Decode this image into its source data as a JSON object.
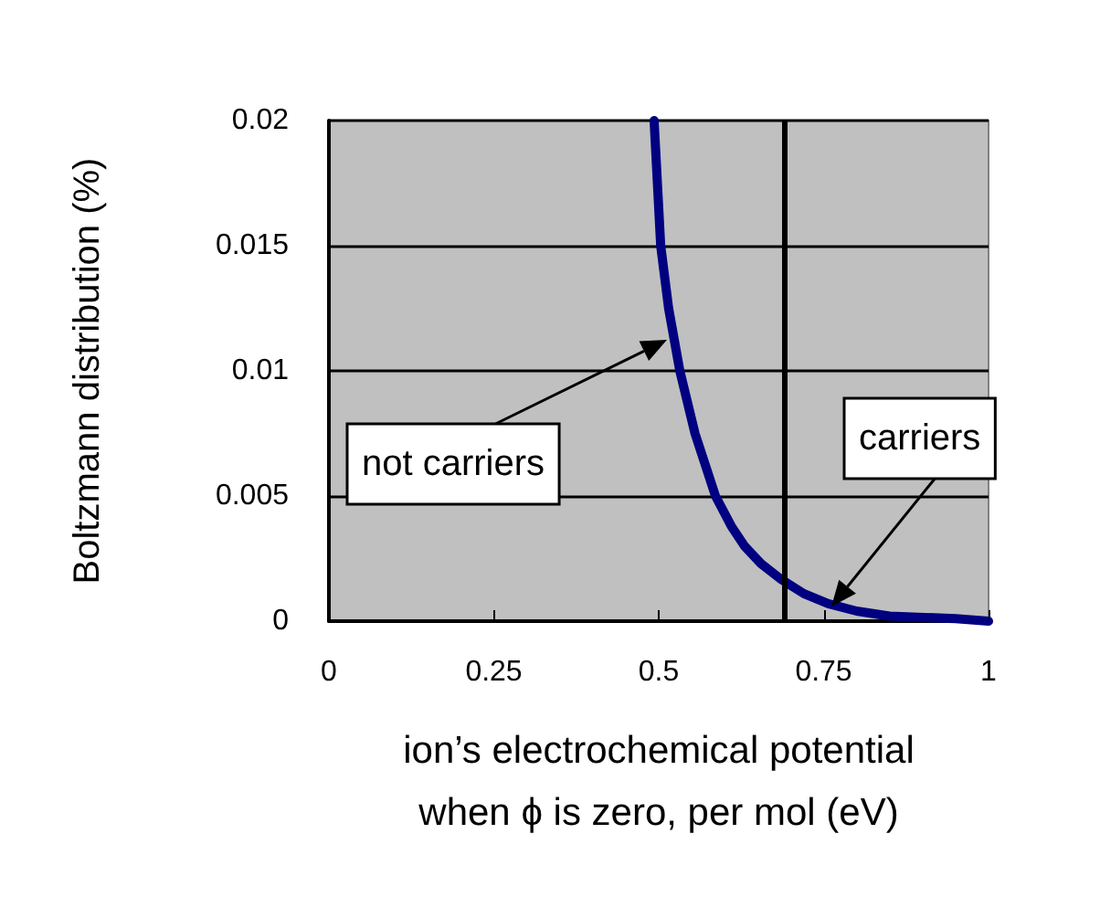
{
  "chart_data": {
    "type": "line",
    "ylabel": "Boltzmann distribution (%)",
    "xlabel": "ion’s electrochemical potential\nwhen ϕ is zero, per mol (eV)",
    "x": [
      0.493,
      0.503,
      0.515,
      0.532,
      0.555,
      0.586,
      0.61,
      0.63,
      0.655,
      0.684,
      0.72,
      0.757,
      0.8,
      0.85,
      0.95,
      1
    ],
    "series": [
      {
        "color": "#000080",
        "values": [
          0.02,
          0.015,
          0.0125,
          0.01,
          0.0075,
          0.005,
          0.0038,
          0.003,
          0.0023,
          0.0017,
          0.0011,
          0.0007,
          0.0004,
          0.0002,
          0.0001,
          0
        ]
      }
    ],
    "xlim": [
      0,
      1
    ],
    "xticks": [
      0,
      0.25,
      0.5,
      0.75,
      1
    ],
    "ylim": [
      0,
      0.02
    ],
    "yticks": [
      0,
      0.005,
      0.01,
      0.015,
      0.02
    ],
    "grid": "y",
    "marker": "none",
    "line_style": "solid",
    "ref_lines": [
      {
        "axis": "x",
        "value": 0.69,
        "color": "#000000"
      }
    ],
    "annotations": [
      "not carriers",
      "carriers"
    ]
  }
}
